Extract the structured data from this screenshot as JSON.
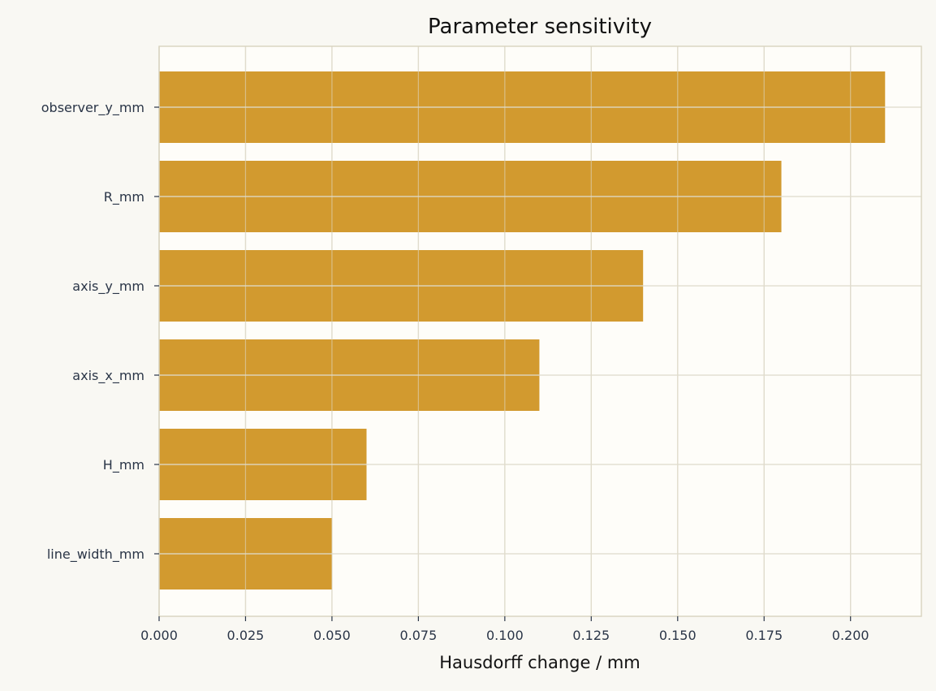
{
  "chart_data": {
    "type": "bar",
    "orientation": "horizontal",
    "title": "Parameter sensitivity",
    "xlabel": "Hausdorff change / mm",
    "ylabel": "",
    "categories": [
      "observer_y_mm",
      "R_mm",
      "axis_y_mm",
      "axis_x_mm",
      "H_mm",
      "line_width_mm"
    ],
    "values": [
      0.21,
      0.18,
      0.14,
      0.11,
      0.06,
      0.05
    ],
    "xlim": [
      0,
      0.2205
    ],
    "xticks": [
      "0.000",
      "0.025",
      "0.050",
      "0.075",
      "0.100",
      "0.125",
      "0.150",
      "0.175",
      "0.200"
    ],
    "grid": true,
    "legend": "none",
    "colors": {
      "bar": "#d29a2f",
      "plot_background": "#fefdf9",
      "figure_background": "#f9f8f3",
      "grid": "#e0dccd",
      "axes_border": "#d8d3bf",
      "tick_text": "#2a3547"
    }
  }
}
